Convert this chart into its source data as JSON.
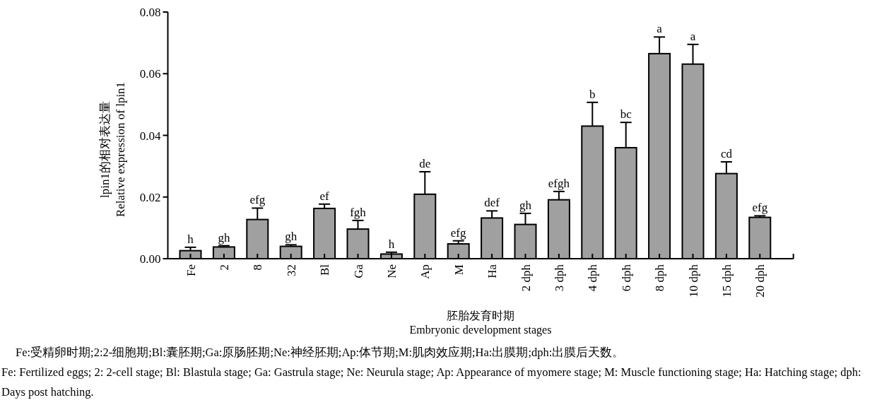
{
  "chart_data": {
    "type": "bar",
    "categories": [
      "Fe",
      "2",
      "8",
      "32",
      "Bl",
      "Ga",
      "Ne",
      "Ap",
      "M",
      "Ha",
      "2 dph",
      "3 dph",
      "4 dph",
      "6 dph",
      "8 dph",
      "10 dph",
      "15 dph",
      "20 dph"
    ],
    "values": [
      0.0026,
      0.0038,
      0.0127,
      0.004,
      0.0163,
      0.0096,
      0.0015,
      0.0209,
      0.0048,
      0.0132,
      0.0111,
      0.0191,
      0.043,
      0.036,
      0.0665,
      0.0631,
      0.0276,
      0.0134
    ],
    "errors": [
      0.0011,
      0.0004,
      0.0037,
      0.0005,
      0.0014,
      0.0028,
      0.0006,
      0.0073,
      0.001,
      0.0023,
      0.0036,
      0.0027,
      0.0077,
      0.0082,
      0.0054,
      0.0064,
      0.0038,
      0.0005
    ],
    "color": "#a0a0a0",
    "ylim": [
      0,
      0.08
    ],
    "yticks": [
      {
        "value": 0,
        "label": "0.00"
      },
      {
        "value": 0.02,
        "label": "0.02"
      },
      {
        "value": 0.04,
        "label": "0.04"
      },
      {
        "value": 0.06,
        "label": "0.06"
      },
      {
        "value": 0.08,
        "label": "0.08"
      }
    ],
    "ylabel": "lpin1的相对表达量\nRelative expression of lpin1",
    "xlabel": "胚胎发育时期\nEmbryonic development stages",
    "grid": false,
    "annotations": [
      {
        "text": "h",
        "x": "Fe",
        "y": 0.0037
      },
      {
        "text": "gh",
        "x": "2",
        "y": 0.0042
      },
      {
        "text": "efg",
        "x": "8",
        "y": 0.0164
      },
      {
        "text": "gh",
        "x": "32",
        "y": 0.0045
      },
      {
        "text": "ef",
        "x": "Bl",
        "y": 0.0177
      },
      {
        "text": "fgh",
        "x": "Ga",
        "y": 0.0124
      },
      {
        "text": "h",
        "x": "Ne",
        "y": 0.0021
      },
      {
        "text": "de",
        "x": "Ap",
        "y": 0.0282
      },
      {
        "text": "efg",
        "x": "M",
        "y": 0.0058
      },
      {
        "text": "def",
        "x": "Ha",
        "y": 0.0155
      },
      {
        "text": "gh",
        "x": "2 dph",
        "y": 0.0147
      },
      {
        "text": "efgh",
        "x": "3 dph",
        "y": 0.0218
      },
      {
        "text": "b",
        "x": "4 dph",
        "y": 0.0507
      },
      {
        "text": "bc",
        "x": "6 dph",
        "y": 0.0442
      },
      {
        "text": "a",
        "x": "8 dph",
        "y": 0.0719
      },
      {
        "text": "a",
        "x": "10 dph",
        "y": 0.0695
      },
      {
        "text": "cd",
        "x": "15 dph",
        "y": 0.0314
      },
      {
        "text": "efg",
        "x": "20 dph",
        "y": 0.0139
      },
      "Fe:受精卵时期;2:2-细胞期;Bl:囊胚期;Ga:原肠胚期;Ne:神经胚期;Ap:体节期;M:肌肉效应期;Ha:出膜期;dph:出膜后天数。",
      "Fe: Fertilized eggs; 2: 2-cell stage; Bl: Blastula stage; Ga: Gastrula stage; Ne: Neurula stage; Ap: Appearance of myomere stage; M: Muscle functioning stage; Ha: Hatching stage; dph: Days post hatching."
    ]
  }
}
